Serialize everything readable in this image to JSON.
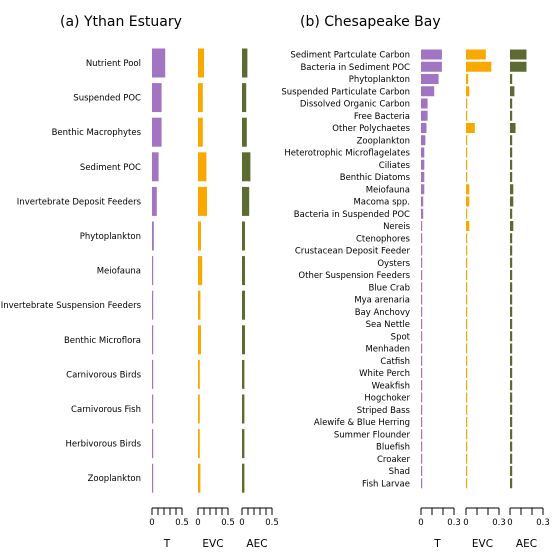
{
  "colors": {
    "T": "#a374c1",
    "EVC": "#f9a800",
    "AEC": "#5c6b31"
  },
  "chart_data": [
    {
      "type": "bar",
      "title": "(a) Ythan Estuary",
      "xmax": 0.5,
      "tick_labels": [
        "0",
        "0.5"
      ],
      "series_labels": [
        "T",
        "EVC",
        "AEC"
      ],
      "categories": [
        "Nutrient Pool",
        "Suspended POC",
        "Benthic Macrophytes",
        "Sediment POC",
        "Invertebrate Deposit Feeders",
        "Phytoplankton",
        "Meiofauna",
        "Invertebrate Suspension Feeders",
        "Benthic Microflora",
        "Carnivorous Birds",
        "Carnivorous Fish",
        "Herbivorous Birds",
        "Zooplankton"
      ],
      "series": [
        {
          "name": "T",
          "values": [
            0.22,
            0.16,
            0.16,
            0.11,
            0.08,
            0.03,
            0.02,
            0.02,
            0.015,
            0.005,
            0.005,
            0.005,
            0.005
          ]
        },
        {
          "name": "EVC",
          "values": [
            0.1,
            0.08,
            0.08,
            0.14,
            0.15,
            0.05,
            0.07,
            0.04,
            0.05,
            0.03,
            0.03,
            0.03,
            0.04
          ]
        },
        {
          "name": "AEC",
          "values": [
            0.09,
            0.07,
            0.08,
            0.14,
            0.12,
            0.05,
            0.05,
            0.05,
            0.05,
            0.04,
            0.04,
            0.04,
            0.04
          ]
        }
      ]
    },
    {
      "type": "bar",
      "title": "(b) Chesapeake Bay",
      "xmax": 0.3,
      "tick_labels": [
        "0",
        "0.3"
      ],
      "series_labels": [
        "T",
        "EVC",
        "AEC"
      ],
      "categories": [
        "Sediment Partculate Carbon",
        "Bacteria in Sediment POC",
        "Phytoplankton",
        "Suspended Particulate Carbon",
        "Dissolved Organic Carbon",
        "Free Bacteria",
        "Other Polychaetes",
        "Zooplankton",
        "Heterotrophic Microflagelates",
        "Ciliates",
        "Benthic Diatoms",
        "Meiofauna",
        "Macoma spp.",
        "Bacteria in Suspended POC",
        "Nereis",
        "Ctenophores",
        "Crustacean Deposit Feeder",
        "Oysters",
        "Other Suspension Feeders",
        "Blue Crab",
        "Mya arenaria",
        "Bay Anchovy",
        "Sea Nettle",
        "Spot",
        "Menhaden",
        "Catfish",
        "White Perch",
        "Weakfish",
        "Hogchoker",
        "Striped Bass",
        "Alewife & Blue Herring",
        "Summer Flounder",
        "Bluefish",
        "Croaker",
        "Shad",
        "Fish Larvae"
      ],
      "series": [
        {
          "name": "T",
          "values": [
            0.19,
            0.19,
            0.16,
            0.12,
            0.06,
            0.06,
            0.05,
            0.04,
            0.03,
            0.03,
            0.03,
            0.03,
            0.02,
            0.02,
            0.01,
            0.01,
            0.005,
            0.005,
            0.005,
            0.005,
            0.005,
            0.005,
            0.005,
            0.005,
            0.005,
            0.005,
            0.005,
            0.005,
            0.005,
            0.005,
            0.005,
            0.005,
            0.005,
            0.005,
            0.005,
            0.005
          ]
        },
        {
          "name": "EVC",
          "values": [
            0.18,
            0.23,
            0.02,
            0.03,
            0.01,
            0.01,
            0.08,
            0.01,
            0.01,
            0.01,
            0.01,
            0.03,
            0.03,
            0.01,
            0.03,
            0.01,
            0.01,
            0.01,
            0.01,
            0.01,
            0.01,
            0.01,
            0.01,
            0.01,
            0.01,
            0.01,
            0.01,
            0.01,
            0.01,
            0.01,
            0.01,
            0.01,
            0.01,
            0.01,
            0.01,
            0.01
          ]
        },
        {
          "name": "AEC",
          "values": [
            0.15,
            0.15,
            0.02,
            0.04,
            0.02,
            0.02,
            0.05,
            0.02,
            0.02,
            0.02,
            0.02,
            0.03,
            0.03,
            0.02,
            0.03,
            0.02,
            0.02,
            0.02,
            0.02,
            0.02,
            0.02,
            0.02,
            0.02,
            0.02,
            0.02,
            0.02,
            0.02,
            0.02,
            0.02,
            0.02,
            0.02,
            0.02,
            0.02,
            0.02,
            0.02,
            0.02
          ]
        }
      ]
    }
  ]
}
